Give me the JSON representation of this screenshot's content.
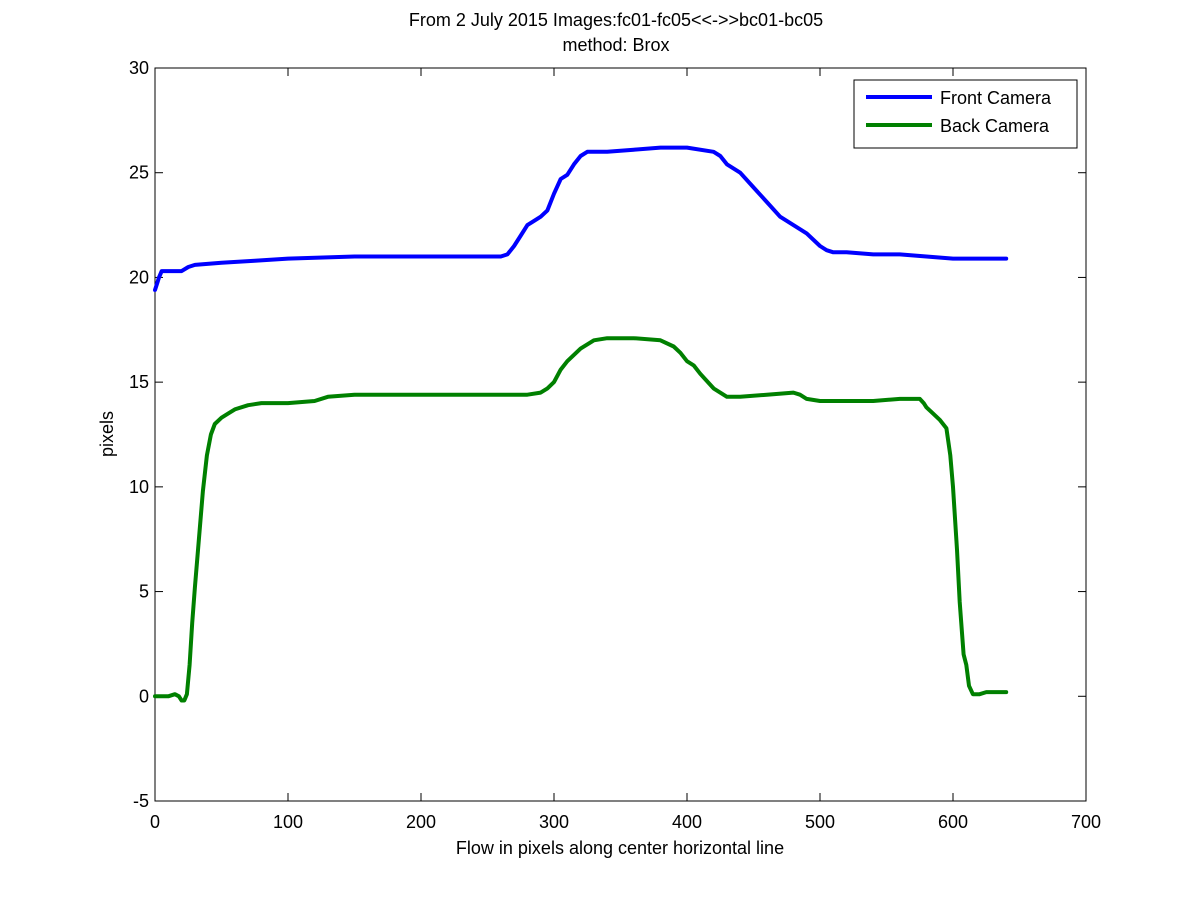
{
  "chart_data": {
    "type": "line",
    "title": "From 2 July 2015 Images:fc01-fc05<<->>bc01-bc05",
    "subtitle": "method: Brox",
    "xlabel": "Flow in pixels along center horizontal line",
    "ylabel": "pixels",
    "xlim": [
      0,
      700
    ],
    "ylim": [
      -5,
      30
    ],
    "xticks": [
      0,
      100,
      200,
      300,
      400,
      500,
      600,
      700
    ],
    "yticks": [
      -5,
      0,
      5,
      10,
      15,
      20,
      25,
      30
    ],
    "grid": false,
    "legend_position": "top-right",
    "series": [
      {
        "name": "Front Camera",
        "color": "#0000ff",
        "x": [
          0,
          2,
          3,
          5,
          10,
          20,
          25,
          30,
          50,
          75,
          100,
          150,
          200,
          240,
          260,
          265,
          270,
          275,
          280,
          285,
          290,
          295,
          300,
          305,
          310,
          315,
          320,
          325,
          330,
          340,
          360,
          380,
          400,
          420,
          425,
          430,
          440,
          450,
          460,
          470,
          480,
          490,
          500,
          505,
          510,
          520,
          540,
          560,
          580,
          600,
          620,
          640
        ],
        "values": [
          19.4,
          19.8,
          20.0,
          20.3,
          20.3,
          20.3,
          20.5,
          20.6,
          20.7,
          20.8,
          20.9,
          21.0,
          21.0,
          21.0,
          21.0,
          21.1,
          21.5,
          22.0,
          22.5,
          22.7,
          22.9,
          23.2,
          24.0,
          24.7,
          24.9,
          25.4,
          25.8,
          26.0,
          26.0,
          26.0,
          26.1,
          26.2,
          26.2,
          26.0,
          25.8,
          25.4,
          25.0,
          24.3,
          23.6,
          22.9,
          22.5,
          22.1,
          21.5,
          21.3,
          21.2,
          21.2,
          21.1,
          21.1,
          21.0,
          20.9,
          20.9,
          20.9
        ]
      },
      {
        "name": "Back Camera",
        "color": "#008000",
        "x": [
          0,
          5,
          10,
          15,
          18,
          20,
          22,
          24,
          26,
          28,
          30,
          33,
          36,
          39,
          42,
          45,
          50,
          55,
          60,
          70,
          80,
          100,
          120,
          130,
          150,
          200,
          250,
          280,
          290,
          295,
          300,
          305,
          310,
          320,
          330,
          340,
          360,
          380,
          390,
          395,
          400,
          405,
          410,
          420,
          430,
          440,
          460,
          480,
          485,
          490,
          500,
          520,
          540,
          560,
          575,
          578,
          580,
          585,
          590,
          595,
          598,
          600,
          603,
          605,
          608,
          610,
          612,
          615,
          620,
          625,
          630,
          640
        ],
        "values": [
          0.0,
          0.0,
          0.0,
          0.1,
          0.0,
          -0.2,
          -0.2,
          0.1,
          1.5,
          3.5,
          5.2,
          7.5,
          9.8,
          11.5,
          12.5,
          13.0,
          13.3,
          13.5,
          13.7,
          13.9,
          14.0,
          14.0,
          14.1,
          14.3,
          14.4,
          14.4,
          14.4,
          14.4,
          14.5,
          14.7,
          15.0,
          15.6,
          16.0,
          16.6,
          17.0,
          17.1,
          17.1,
          17.0,
          16.7,
          16.4,
          16.0,
          15.8,
          15.4,
          14.7,
          14.3,
          14.3,
          14.4,
          14.5,
          14.4,
          14.2,
          14.1,
          14.1,
          14.1,
          14.2,
          14.2,
          14.0,
          13.8,
          13.5,
          13.2,
          12.8,
          11.5,
          10.0,
          7.0,
          4.5,
          2.0,
          1.5,
          0.5,
          0.1,
          0.1,
          0.2,
          0.2,
          0.2
        ]
      }
    ]
  }
}
